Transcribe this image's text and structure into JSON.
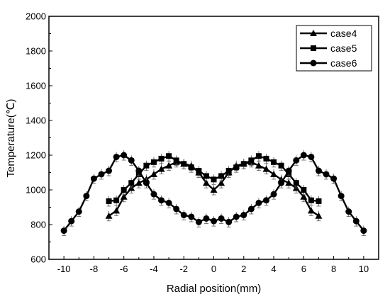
{
  "chart_data": {
    "type": "line",
    "xlabel": "Radial position(mm)",
    "ylabel": "Temperature(℃)",
    "xlim": [
      -11,
      11
    ],
    "ylim": [
      600,
      2000
    ],
    "xticks": [
      -10,
      -8,
      -6,
      -4,
      -2,
      0,
      2,
      4,
      6,
      8,
      10
    ],
    "yticks": [
      600,
      800,
      1000,
      1200,
      1400,
      1600,
      1800,
      2000
    ],
    "grid": false,
    "legend_position": "top-right",
    "series": [
      {
        "name": "case4",
        "marker": "triangle",
        "x": [
          -7,
          -6.5,
          -6,
          -5.5,
          -5,
          -4.5,
          -4,
          -3.5,
          -3,
          -2.5,
          -2,
          -1.5,
          -1,
          -0.5,
          0,
          0.5,
          1,
          1.5,
          2,
          2.5,
          3,
          3.5,
          4,
          4.5,
          5,
          5.5,
          6,
          6.5,
          7
        ],
        "y": [
          850,
          880,
          960,
          1010,
          1040,
          1060,
          1090,
          1120,
          1140,
          1160,
          1150,
          1140,
          1100,
          1040,
          1000,
          1040,
          1100,
          1140,
          1150,
          1160,
          1140,
          1120,
          1090,
          1060,
          1040,
          1010,
          960,
          880,
          850
        ]
      },
      {
        "name": "case5",
        "marker": "square",
        "x": [
          -7,
          -6.5,
          -6,
          -5.5,
          -5,
          -4.5,
          -4,
          -3.5,
          -3,
          -2.5,
          -2,
          -1.5,
          -1,
          -0.5,
          0,
          0.5,
          1,
          1.5,
          2,
          2.5,
          3,
          3.5,
          4,
          4.5,
          5,
          5.5,
          6,
          6.5,
          7
        ],
        "y": [
          935,
          940,
          1000,
          1040,
          1090,
          1140,
          1160,
          1180,
          1195,
          1170,
          1150,
          1130,
          1110,
          1080,
          1060,
          1080,
          1110,
          1130,
          1150,
          1170,
          1195,
          1180,
          1160,
          1140,
          1090,
          1040,
          1000,
          940,
          935
        ]
      },
      {
        "name": "case6",
        "marker": "circle",
        "x": [
          -10,
          -9.5,
          -9,
          -8.5,
          -8,
          -7.5,
          -7,
          -6.5,
          -6,
          -5.5,
          -5,
          -4.5,
          -4,
          -3.5,
          -3,
          -2.5,
          -2,
          -1.5,
          -1,
          -0.5,
          0,
          0.5,
          1,
          1.5,
          2,
          2.5,
          3,
          3.5,
          4,
          4.5,
          5,
          5.5,
          6,
          6.5,
          7,
          7.5,
          8,
          8.5,
          9,
          9.5,
          10
        ],
        "y": [
          765,
          820,
          875,
          965,
          1065,
          1090,
          1110,
          1190,
          1200,
          1170,
          1110,
          1040,
          975,
          940,
          925,
          890,
          855,
          845,
          815,
          835,
          820,
          835,
          815,
          845,
          855,
          890,
          925,
          940,
          975,
          1040,
          1110,
          1170,
          1200,
          1190,
          1110,
          1090,
          1065,
          965,
          875,
          820,
          765
        ]
      }
    ]
  }
}
